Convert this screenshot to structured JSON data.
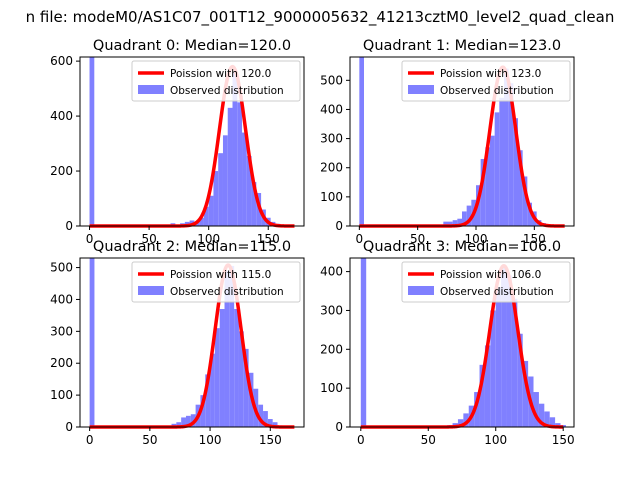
{
  "figure": {
    "suptitle": "n file: modeM0/AS1C07_001T12_9000005632_41213cztM0_level2_quad_clean"
  },
  "colors": {
    "hist_fill": "#8080ff",
    "curve": "#ff0000",
    "axes": "#000000",
    "background": "#ffffff"
  },
  "chart_data": [
    {
      "type": "bar",
      "title": "Quadrant 0: Median=120.0",
      "xlabel": "",
      "ylabel": "",
      "xlim": [
        -8,
        180
      ],
      "ylim": [
        0,
        615
      ],
      "xticks": [
        0,
        50,
        100,
        150
      ],
      "yticks": [
        0,
        200,
        400,
        600
      ],
      "grid": false,
      "legend_position": "upper right",
      "bin_width": 4,
      "bins": [
        [
          0,
          615
        ],
        [
          68,
          10
        ],
        [
          76,
          10
        ],
        [
          80,
          15
        ],
        [
          84,
          20
        ],
        [
          88,
          15
        ],
        [
          92,
          30
        ],
        [
          96,
          70
        ],
        [
          100,
          110
        ],
        [
          104,
          200
        ],
        [
          108,
          265
        ],
        [
          112,
          330
        ],
        [
          116,
          430
        ],
        [
          120,
          560
        ],
        [
          124,
          450
        ],
        [
          128,
          340
        ],
        [
          132,
          255
        ],
        [
          136,
          160
        ],
        [
          140,
          120
        ],
        [
          144,
          60
        ],
        [
          148,
          30
        ],
        [
          152,
          15
        ],
        [
          156,
          8
        ]
      ],
      "series": [
        {
          "name": "Poission with 120.0",
          "kind": "line",
          "lambda": 120.0,
          "peak": 580,
          "x_range": [
            0,
            172
          ]
        },
        {
          "name": "Observed distribution",
          "kind": "histogram"
        }
      ]
    },
    {
      "type": "bar",
      "title": "Quadrant 1: Median=123.0",
      "xlabel": "",
      "ylabel": "",
      "xlim": [
        -8,
        184
      ],
      "ylim": [
        0,
        580
      ],
      "xticks": [
        0,
        50,
        100,
        150
      ],
      "yticks": [
        0,
        100,
        200,
        300,
        400,
        500
      ],
      "grid": false,
      "legend_position": "upper right",
      "bin_width": 4,
      "bins": [
        [
          0,
          580
        ],
        [
          64,
          5
        ],
        [
          72,
          15
        ],
        [
          76,
          15
        ],
        [
          80,
          20
        ],
        [
          84,
          25
        ],
        [
          88,
          50
        ],
        [
          92,
          70
        ],
        [
          96,
          90
        ],
        [
          100,
          140
        ],
        [
          104,
          230
        ],
        [
          108,
          270
        ],
        [
          112,
          310
        ],
        [
          116,
          390
        ],
        [
          120,
          440
        ],
        [
          124,
          540
        ],
        [
          128,
          490
        ],
        [
          132,
          370
        ],
        [
          136,
          260
        ],
        [
          140,
          170
        ],
        [
          144,
          80
        ],
        [
          148,
          50
        ],
        [
          152,
          20
        ],
        [
          156,
          10
        ]
      ],
      "series": [
        {
          "name": "Poission with 123.0",
          "kind": "line",
          "lambda": 123.0,
          "peak": 545,
          "x_range": [
            0,
            176
          ]
        },
        {
          "name": "Observed distribution",
          "kind": "histogram"
        }
      ]
    },
    {
      "type": "bar",
      "title": "Quadrant 2: Median=115.0",
      "xlabel": "",
      "ylabel": "",
      "xlim": [
        -8,
        178
      ],
      "ylim": [
        0,
        530
      ],
      "xticks": [
        0,
        50,
        100,
        150
      ],
      "yticks": [
        0,
        100,
        200,
        300,
        400,
        500
      ],
      "grid": false,
      "legend_position": "upper right",
      "bin_width": 4,
      "bins": [
        [
          0,
          530
        ],
        [
          68,
          10
        ],
        [
          72,
          15
        ],
        [
          76,
          30
        ],
        [
          80,
          35
        ],
        [
          84,
          40
        ],
        [
          88,
          70
        ],
        [
          92,
          100
        ],
        [
          96,
          165
        ],
        [
          100,
          230
        ],
        [
          104,
          310
        ],
        [
          108,
          370
        ],
        [
          112,
          490
        ],
        [
          116,
          505
        ],
        [
          120,
          370
        ],
        [
          124,
          300
        ],
        [
          128,
          245
        ],
        [
          132,
          170
        ],
        [
          136,
          120
        ],
        [
          140,
          70
        ],
        [
          144,
          50
        ],
        [
          148,
          25
        ],
        [
          152,
          15
        ],
        [
          156,
          5
        ]
      ],
      "series": [
        {
          "name": "Poission with 115.0",
          "kind": "line",
          "lambda": 115.0,
          "peak": 508,
          "x_range": [
            0,
            170
          ]
        },
        {
          "name": "Observed distribution",
          "kind": "histogram"
        }
      ]
    },
    {
      "type": "bar",
      "title": "Quadrant 3: Median=106.0",
      "xlabel": "",
      "ylabel": "",
      "xlim": [
        -8,
        158
      ],
      "ylim": [
        0,
        435
      ],
      "xticks": [
        0,
        50,
        100,
        150
      ],
      "yticks": [
        0,
        100,
        200,
        300,
        400
      ],
      "grid": false,
      "legend_position": "upper right",
      "bin_width": 4,
      "bins": [
        [
          0,
          435
        ],
        [
          64,
          5
        ],
        [
          68,
          10
        ],
        [
          72,
          20
        ],
        [
          76,
          35
        ],
        [
          80,
          55
        ],
        [
          84,
          90
        ],
        [
          88,
          160
        ],
        [
          92,
          210
        ],
        [
          96,
          300
        ],
        [
          100,
          360
        ],
        [
          104,
          410
        ],
        [
          108,
          390
        ],
        [
          112,
          330
        ],
        [
          116,
          240
        ],
        [
          120,
          170
        ],
        [
          124,
          130
        ],
        [
          128,
          90
        ],
        [
          132,
          60
        ],
        [
          136,
          40
        ],
        [
          140,
          25
        ],
        [
          144,
          10
        ],
        [
          148,
          5
        ]
      ],
      "series": [
        {
          "name": "Poission with 106.0",
          "kind": "line",
          "lambda": 106.0,
          "peak": 415,
          "x_range": [
            0,
            150
          ]
        },
        {
          "name": "Observed distribution",
          "kind": "histogram"
        }
      ]
    }
  ]
}
